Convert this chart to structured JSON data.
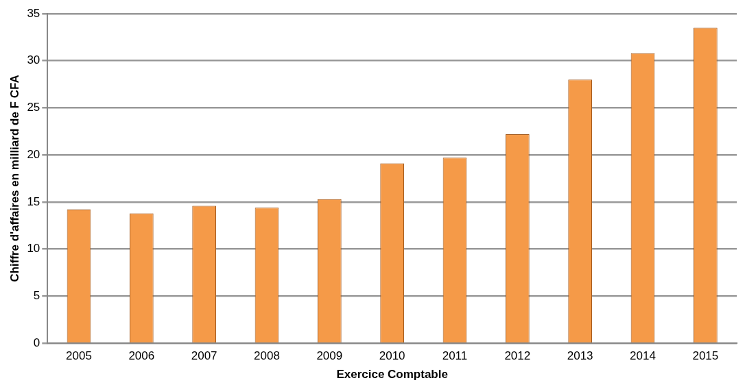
{
  "chart_data": {
    "type": "bar",
    "xlabel": "Exercice Comptable",
    "ylabel": "Chiffre d'affaires en milliard de F CFA",
    "categories": [
      "2005",
      "2006",
      "2007",
      "2008",
      "2009",
      "2010",
      "2011",
      "2012",
      "2013",
      "2014",
      "2015"
    ],
    "values": [
      14.2,
      13.8,
      14.6,
      14.4,
      15.3,
      19.1,
      19.7,
      22.2,
      28.0,
      30.8,
      33.5
    ],
    "color": "#f59a48",
    "ylim": [
      0,
      35
    ],
    "yticks": [
      0,
      5,
      10,
      15,
      20,
      25,
      30,
      35
    ],
    "grid": "y"
  }
}
